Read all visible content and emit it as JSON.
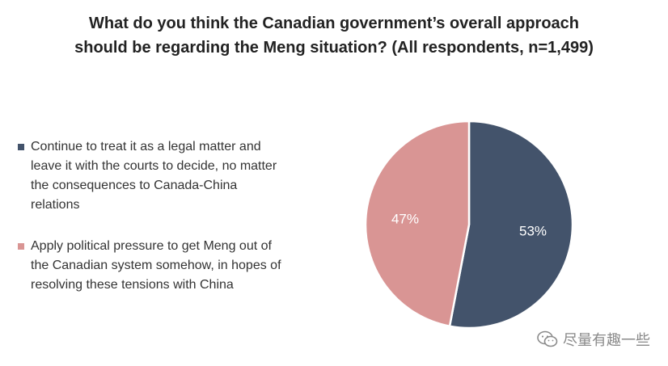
{
  "chart_data": {
    "type": "pie",
    "title_lines": [
      "What do you think the Canadian government’s overall approach",
      "should be regarding the Meng situation? (All respondents, n=1,499)"
    ],
    "categories": [
      "Continue to treat it as a legal matter and leave it with the courts to decide, no matter the consequences to Canada-China relations",
      "Apply political pressure to get Meng out of the Canadian system somehow, in hopes of resolving these tensions with China"
    ],
    "values": [
      53,
      47
    ],
    "data_labels": [
      "53%",
      "47%"
    ],
    "colors": [
      "#43536b",
      "#d99594"
    ],
    "legend_position": "left"
  },
  "legend": {
    "lines": [
      [
        "Continue to treat it as a legal matter and",
        "leave it with the courts to decide, no matter",
        "the consequences to Canada-China",
        "relations"
      ],
      [
        "Apply political pressure to get Meng out of",
        "the Canadian system somehow, in hopes of",
        "resolving these tensions with China"
      ]
    ]
  },
  "watermark": {
    "text": "尽量有趣一些",
    "icon": "wechat-icon"
  }
}
